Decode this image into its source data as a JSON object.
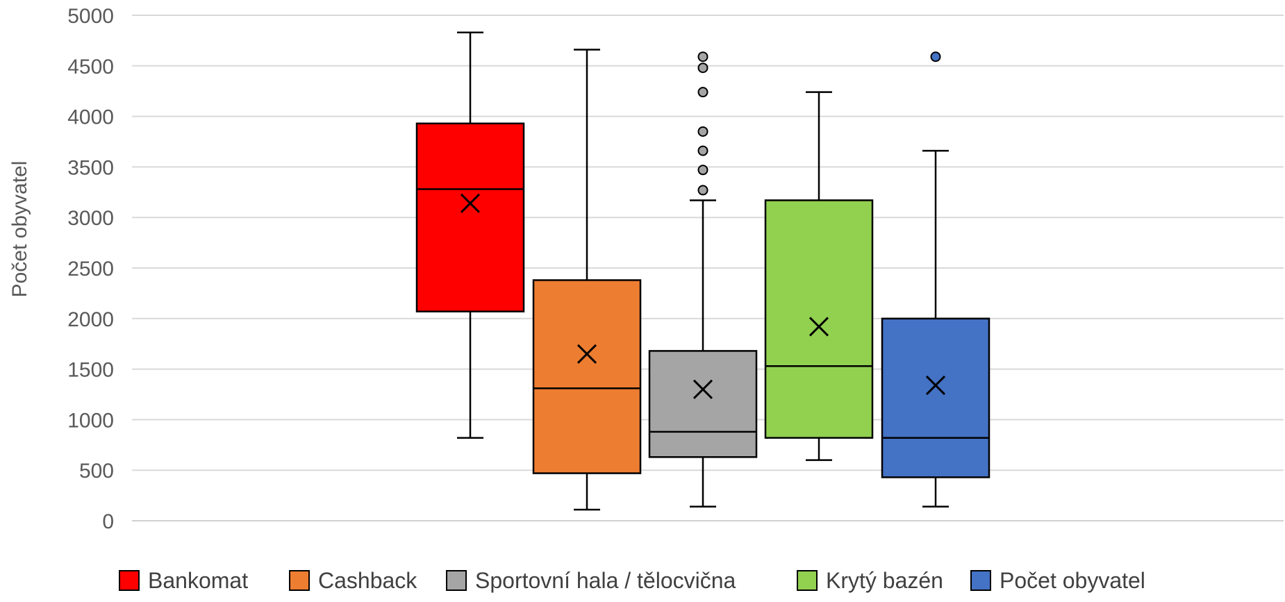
{
  "chart_data": {
    "type": "boxplot",
    "title": "",
    "xlabel": "",
    "ylabel": "Počet obyvatel",
    "ylim": [
      0,
      5000
    ],
    "yticks": [
      0,
      500,
      1000,
      1500,
      2000,
      2500,
      3000,
      3500,
      4000,
      4500,
      5000
    ],
    "grid": true,
    "legend_position": "bottom",
    "series": [
      {
        "name": "Bankomat",
        "color": "#ff0000",
        "min": 820,
        "q1": 2070,
        "median": 3280,
        "q3": 3930,
        "max": 4830,
        "mean": 3140,
        "outliers": []
      },
      {
        "name": "Cashback",
        "color": "#ed7d31",
        "min": 110,
        "q1": 470,
        "median": 1310,
        "q3": 2380,
        "max": 4660,
        "mean": 1650,
        "outliers": []
      },
      {
        "name": "Sportovní hala / tělocvična",
        "color": "#a5a5a5",
        "min": 140,
        "q1": 630,
        "median": 880,
        "q3": 1680,
        "max": 3170,
        "mean": 1300,
        "outliers": [
          3270,
          3470,
          3660,
          3850,
          4240,
          4480,
          4590
        ]
      },
      {
        "name": "Krytý bazén",
        "color": "#92d050",
        "min": 600,
        "q1": 820,
        "median": 1530,
        "q3": 3170,
        "max": 4240,
        "mean": 1920,
        "outliers": []
      },
      {
        "name": "Počet obyvatel",
        "color": "#4472c4",
        "min": 140,
        "q1": 430,
        "median": 820,
        "q3": 2000,
        "max": 3660,
        "mean": 1340,
        "outliers": [
          4590
        ]
      }
    ]
  }
}
